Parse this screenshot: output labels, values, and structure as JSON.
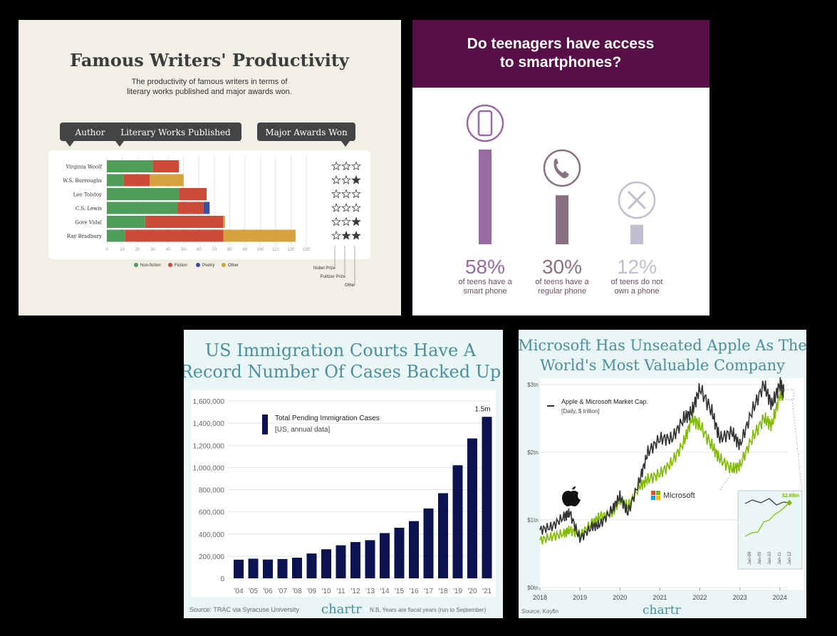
{
  "chart_data": [
    {
      "type": "bar",
      "orientation": "horizontal",
      "stacked": true,
      "title": "Famous Writers' Productivity",
      "subtitle": [
        "The productivity of famous writers in terms of",
        "literary works published and major awards won."
      ],
      "headers": {
        "author": "Author",
        "works": "Literary Works Published",
        "awards": "Major Awards Won"
      },
      "categories": [
        "Virginia Woolf",
        "W.S. Burroughs",
        "Leo Tolstoy",
        "C.S. Lewis",
        "Gore Vidal",
        "Ray Bradbury"
      ],
      "series": [
        {
          "name": "Non-fiction",
          "color": "#4f9d58",
          "values": [
            30,
            11,
            47,
            46,
            25,
            12
          ]
        },
        {
          "name": "Fiction",
          "color": "#cc4b37",
          "values": [
            17,
            17,
            18,
            17,
            51,
            64
          ]
        },
        {
          "name": "Poetry",
          "color": "#3b4ea0",
          "values": [
            0,
            0,
            0,
            4,
            0,
            0
          ]
        },
        {
          "name": "Other",
          "color": "#d6a23f",
          "values": [
            0,
            22,
            0,
            0,
            1,
            47
          ]
        }
      ],
      "xticks": [
        "0",
        "10",
        "20",
        "30",
        "40",
        "50",
        "60",
        "70",
        "80",
        "90",
        "100",
        "110",
        "120",
        "130"
      ],
      "xlim": [
        0,
        130
      ],
      "awards": [
        [
          0,
          0,
          0
        ],
        [
          0,
          0,
          1
        ],
        [
          0,
          0,
          0
        ],
        [
          0,
          0,
          0
        ],
        [
          0,
          0,
          1
        ],
        [
          0,
          1,
          1
        ]
      ],
      "award_labels": [
        "Nobel Prize",
        "Pulitzer Prize",
        "Other"
      ]
    },
    {
      "type": "bar",
      "title": [
        "Do teenagers have access",
        "to smartphones?"
      ],
      "items": [
        {
          "value": 58,
          "label": "58%",
          "desc": [
            "of teens have a",
            "smart phone"
          ],
          "color": "#9a6aa2",
          "icon": "smartphone-icon"
        },
        {
          "value": 30,
          "label": "30%",
          "desc": [
            "of teens have a",
            "regular phone"
          ],
          "color": "#8a7182",
          "icon": "phone-handset-icon"
        },
        {
          "value": 12,
          "label": "12%",
          "desc": [
            "of teens do not",
            "own a phone"
          ],
          "color": "#c3bdd0",
          "icon": "cross-icon"
        }
      ]
    },
    {
      "type": "bar",
      "title": [
        "US Immigration Courts Have A",
        "Record Number Of Cases Backed Up"
      ],
      "legend": [
        "Total Pending Immigration Cases",
        "[US, annual data]"
      ],
      "categories": [
        "'04",
        "'05",
        "'06",
        "'07",
        "'08",
        "'09",
        "'10",
        "'11",
        "'12",
        "'13",
        "'14",
        "'15",
        "'16",
        "'17",
        "'18",
        "'19",
        "'20",
        "'21"
      ],
      "values": [
        168000,
        177000,
        169000,
        174000,
        186000,
        224000,
        262000,
        298000,
        327000,
        344000,
        408000,
        456000,
        516000,
        630000,
        768000,
        1020000,
        1262000,
        1457000
      ],
      "yticks": [
        "0",
        "200,000",
        "400,000",
        "600,000",
        "800,000",
        "1,000,000",
        "1,200,000",
        "1,400,000",
        "1,600,000"
      ],
      "ylim": [
        0,
        1600000
      ],
      "annotation": "1.5m",
      "source": "Source: TRAC via Syracuse University",
      "brand": "chartr",
      "note": "N.B. Years are fiscal years (run to September)"
    },
    {
      "type": "line",
      "title": [
        "Microsoft Has Unseated Apple As The",
        "World's Most Valuable Company"
      ],
      "legend": [
        "Apple & Microsoft Market Cap.",
        "[Daily, $ trillion]"
      ],
      "xticks": [
        "2018",
        "2019",
        "2020",
        "2021",
        "2022",
        "2023",
        "2024"
      ],
      "yticks": [
        "$0tn",
        "$1tn",
        "$2tn",
        "$3tn"
      ],
      "ylim": [
        0,
        3
      ],
      "xlim": [
        2018,
        2024.2
      ],
      "series": [
        {
          "name": "Apple",
          "color": "#333333",
          "x": [
            2018,
            2018.3,
            2018.6,
            2018.75,
            2019,
            2019.3,
            2019.5,
            2019.8,
            2020,
            2020.2,
            2020.5,
            2020.7,
            2021,
            2021.3,
            2021.6,
            2021.8,
            2022,
            2022.3,
            2022.5,
            2022.8,
            2023,
            2023.3,
            2023.6,
            2023.8,
            2024,
            2024.1
          ],
          "y": [
            0.85,
            0.9,
            1.05,
            1.1,
            0.72,
            0.9,
            0.93,
            1.15,
            1.35,
            1.1,
            1.6,
            2.0,
            2.2,
            2.2,
            2.5,
            2.6,
            2.95,
            2.6,
            2.2,
            2.3,
            2.1,
            2.6,
            3.0,
            2.7,
            3.0,
            2.9
          ]
        },
        {
          "name": "Microsoft",
          "color": "#7fba00",
          "x": [
            2018,
            2018.3,
            2018.6,
            2018.75,
            2019,
            2019.3,
            2019.5,
            2019.8,
            2020,
            2020.2,
            2020.5,
            2020.7,
            2021,
            2021.3,
            2021.6,
            2021.8,
            2022,
            2022.3,
            2022.5,
            2022.8,
            2023,
            2023.3,
            2023.6,
            2023.8,
            2024,
            2024.1
          ],
          "y": [
            0.7,
            0.75,
            0.8,
            0.85,
            0.78,
            0.95,
            1.05,
            1.1,
            1.3,
            1.2,
            1.5,
            1.6,
            1.68,
            1.85,
            2.15,
            2.5,
            2.4,
            2.1,
            1.9,
            1.75,
            1.8,
            2.2,
            2.5,
            2.4,
            2.85,
            2.89
          ]
        }
      ],
      "brands": [
        "Apple",
        "Microsoft"
      ],
      "inset": {
        "label": "$2.89tn",
        "xticks": [
          "Jan-08",
          "Jan-09",
          "Jan-10",
          "Jan-11",
          "Jan-12"
        ]
      },
      "source": "Source: Koyfin",
      "brand": "chartr"
    }
  ]
}
